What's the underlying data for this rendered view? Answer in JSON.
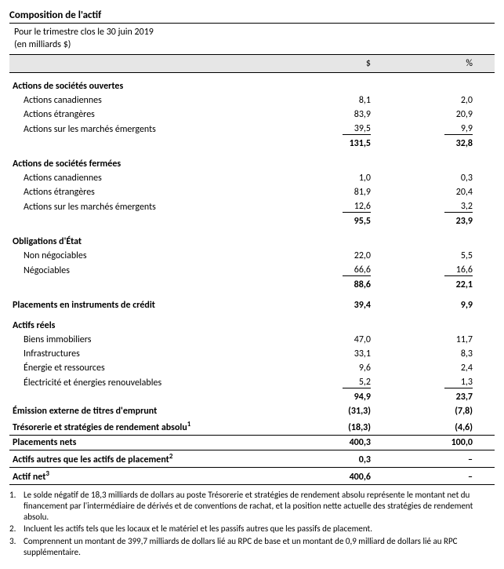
{
  "title": "Composition de l'actif",
  "subtitle_line1": "Pour le trimestre clos le 30 juin 2019",
  "subtitle_line2": "(en milliards $)",
  "header_val": "$",
  "header_pct": "%",
  "sections": [
    {
      "name": "Actions de sociétés ouvertes",
      "rows": [
        {
          "label": "Actions canadiennes",
          "val": "8,1",
          "pct": "2,0"
        },
        {
          "label": "Actions étrangères",
          "val": "83,9",
          "pct": "20,9"
        },
        {
          "label": "Actions sur les marchés émergents",
          "val": "39,5",
          "pct": "9,9",
          "underline": true
        }
      ],
      "subtotal": {
        "val": "131,5",
        "pct": "32,8"
      }
    },
    {
      "name": "Actions de sociétés fermées",
      "rows": [
        {
          "label": "Actions canadiennes",
          "val": "1,0",
          "pct": "0,3"
        },
        {
          "label": "Actions étrangères",
          "val": "81,9",
          "pct": "20,4"
        },
        {
          "label": "Actions sur les marchés émergents",
          "val": "12,6",
          "pct": "3,2",
          "underline": true
        }
      ],
      "subtotal": {
        "val": "95,5",
        "pct": "23,9"
      }
    },
    {
      "name": "Obligations d'État",
      "rows": [
        {
          "label": "Non négociables",
          "val": "22,0",
          "pct": "5,5"
        },
        {
          "label": "Négociables",
          "val": "66,6",
          "pct": "16,6",
          "underline": true
        }
      ],
      "subtotal": {
        "val": "88,6",
        "pct": "22,1"
      }
    },
    {
      "name": "Placements en instruments de crédit",
      "standalone": true,
      "subtotal": {
        "val": "39,4",
        "pct": "9,9"
      }
    },
    {
      "name": "Actifs réels",
      "rows": [
        {
          "label": "Biens immobiliers",
          "val": "47,0",
          "pct": "11,7"
        },
        {
          "label": "Infrastructures",
          "val": "33,1",
          "pct": "8,3"
        },
        {
          "label": "Énergie et ressources",
          "val": "9,6",
          "pct": "2,4"
        },
        {
          "label": "Électricité et énergies renouvelables",
          "val": "5,2",
          "pct": "1,3",
          "underline": true
        }
      ],
      "subtotal": {
        "val": "94,9",
        "pct": "23,7"
      }
    }
  ],
  "extra_rows": [
    {
      "label": "Émission externe de titres d'emprunt",
      "val": "(31,3)",
      "pct": "(7,8)",
      "bold": true
    },
    {
      "label": "Trésorerie et stratégies de rendement absolu",
      "sup": "1",
      "val": "(18,3)",
      "pct": "(4,6)",
      "bold": true,
      "rule_after": true
    },
    {
      "label": "Placements nets",
      "val": "400,3",
      "pct": "100,0",
      "bold": true,
      "rule_after": true
    },
    {
      "label": "Actifs autres que les actifs de placement",
      "sup": "2",
      "val": "0,3",
      "pct": "–",
      "bold": true,
      "rule_after": true
    },
    {
      "label": "Actif net",
      "sup": "3",
      "val": "400,6",
      "pct": "–",
      "bold": true,
      "rule_after": true
    }
  ],
  "footnotes": [
    {
      "num": "1.",
      "text": "Le solde négatif de 18,3 milliards de dollars au poste Trésorerie et stratégies de rendement absolu représente le montant net du financement par l'intermédiaire de dérivés et de conventions de rachat, et la position nette actuelle des stratégies de rendement absolu."
    },
    {
      "num": "2.",
      "text": "Incluent les actifs tels que les locaux et le matériel et les passifs autres que les passifs de placement."
    },
    {
      "num": "3.",
      "text": "Comprennent un montant de 399,7 milliards de dollars lié au RPC de base et un montant de 0,9 milliard de dollars lié au RPC supplémentaire."
    }
  ]
}
